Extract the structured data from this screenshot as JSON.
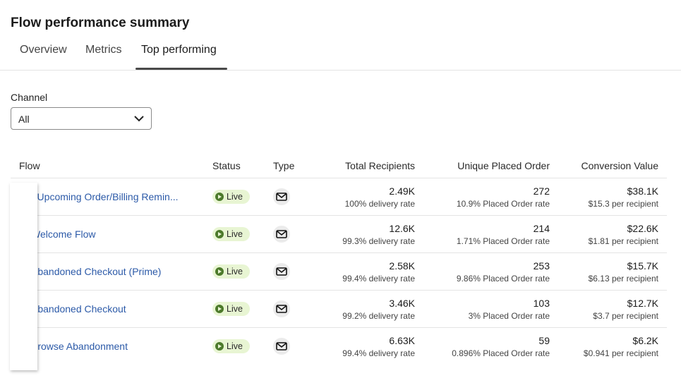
{
  "title": "Flow performance summary",
  "tabs": [
    {
      "label": "Overview"
    },
    {
      "label": "Metrics"
    },
    {
      "label": "Top performing"
    }
  ],
  "filter": {
    "label": "Channel",
    "value": "All"
  },
  "columns": {
    "flow": "Flow",
    "status": "Status",
    "type": "Type",
    "recipients": "Total Recipients",
    "orders": "Unique Placed Order",
    "value": "Conversion Value"
  },
  "rows": [
    {
      "flow": "- Upcoming Order/Billing Remin...",
      "status": "Live",
      "recipients": "2.49K",
      "delivery": "100% delivery rate",
      "orders": "272",
      "order_rate": "10.9% Placed Order rate",
      "value": "$38.1K",
      "per": "$15.3 per recipient"
    },
    {
      "flow": "Welcome Flow",
      "status": "Live",
      "recipients": "12.6K",
      "delivery": "99.3% delivery rate",
      "orders": "214",
      "order_rate": "1.71% Placed Order rate",
      "value": "$22.6K",
      "per": "$1.81 per recipient"
    },
    {
      "flow": "Abandoned Checkout (Prime)",
      "status": "Live",
      "recipients": "2.58K",
      "delivery": "99.4% delivery rate",
      "orders": "253",
      "order_rate": "9.86% Placed Order rate",
      "value": "$15.7K",
      "per": "$6.13 per recipient"
    },
    {
      "flow": "Abandoned Checkout",
      "status": "Live",
      "recipients": "3.46K",
      "delivery": "99.2% delivery rate",
      "orders": "103",
      "order_rate": "3% Placed Order rate",
      "value": "$12.7K",
      "per": "$3.7 per recipient"
    },
    {
      "flow": "Browse Abandonment",
      "status": "Live",
      "recipients": "6.63K",
      "delivery": "99.4% delivery rate",
      "orders": "59",
      "order_rate": "0.896% Placed Order rate",
      "value": "$6.2K",
      "per": "$0.941 per recipient"
    }
  ]
}
